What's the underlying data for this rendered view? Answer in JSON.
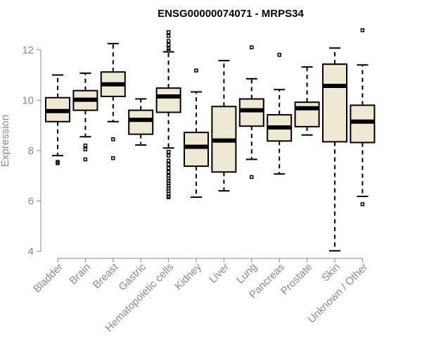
{
  "chart_data": {
    "type": "boxplot",
    "title": "ENSG00000074071 - MRPS34",
    "xlabel": "",
    "ylabel": "Expression",
    "ylim": [
      4,
      13
    ],
    "yticks": [
      4,
      6,
      8,
      10,
      12
    ],
    "box_fill": "#efe9d3",
    "categories": [
      "Bladder",
      "Brain",
      "Breast",
      "Gastric",
      "Hematopoietic cells",
      "Kidney",
      "Liver",
      "Lung",
      "Pancreas",
      "Prostate",
      "Skin",
      "Unknown / Other"
    ],
    "boxes": [
      {
        "category": "Bladder",
        "whisker_low": 7.8,
        "q1": 9.15,
        "median": 9.57,
        "q3": 10.1,
        "whisker_high": 11.0,
        "outliers": [
          7.55,
          7.5
        ]
      },
      {
        "category": "Brain",
        "whisker_low": 8.55,
        "q1": 9.6,
        "median": 10.02,
        "q3": 10.38,
        "whisker_high": 11.07,
        "outliers": [
          8.2,
          8.05,
          7.65
        ]
      },
      {
        "category": "Breast",
        "whisker_low": 9.15,
        "q1": 10.15,
        "median": 10.63,
        "q3": 11.12,
        "whisker_high": 12.25,
        "outliers": [
          8.45,
          7.7
        ]
      },
      {
        "category": "Gastric",
        "whisker_low": 8.22,
        "q1": 8.65,
        "median": 9.22,
        "q3": 9.6,
        "whisker_high": 10.05,
        "outliers": []
      },
      {
        "category": "Hematopoietic cells",
        "whisker_low": 8.1,
        "q1": 9.52,
        "median": 10.15,
        "q3": 10.48,
        "whisker_high": 11.92,
        "outliers": [
          12.7,
          12.55,
          12.35,
          12.2,
          12.05,
          11.97,
          7.95,
          7.8,
          7.6,
          7.45,
          7.3,
          7.15,
          7.0,
          6.9,
          6.8,
          6.7,
          6.6,
          6.5,
          6.4,
          6.28,
          6.18,
          6.15
        ]
      },
      {
        "category": "Kidney",
        "whisker_low": 6.15,
        "q1": 7.38,
        "median": 8.15,
        "q3": 8.72,
        "whisker_high": 10.33,
        "outliers": [
          11.18
        ]
      },
      {
        "category": "Liver",
        "whisker_low": 6.4,
        "q1": 7.15,
        "median": 8.4,
        "q3": 9.75,
        "whisker_high": 11.57,
        "outliers": []
      },
      {
        "category": "Lung",
        "whisker_low": 7.65,
        "q1": 8.97,
        "median": 9.6,
        "q3": 10.05,
        "whisker_high": 10.85,
        "outliers": [
          12.1,
          6.95
        ]
      },
      {
        "category": "Pancreas",
        "whisker_low": 7.07,
        "q1": 8.38,
        "median": 8.92,
        "q3": 9.42,
        "whisker_high": 10.42,
        "outliers": [
          11.8
        ]
      },
      {
        "category": "Prostate",
        "whisker_low": 8.62,
        "q1": 8.95,
        "median": 9.68,
        "q3": 9.92,
        "whisker_high": 11.32,
        "outliers": []
      },
      {
        "category": "Skin",
        "whisker_low": 4.02,
        "q1": 8.35,
        "median": 10.57,
        "q3": 11.43,
        "whisker_high": 12.07,
        "outliers": []
      },
      {
        "category": "Unknown / Other",
        "whisker_low": 6.18,
        "q1": 8.32,
        "median": 9.15,
        "q3": 9.8,
        "whisker_high": 11.4,
        "outliers": [
          12.78,
          5.87
        ]
      }
    ]
  }
}
